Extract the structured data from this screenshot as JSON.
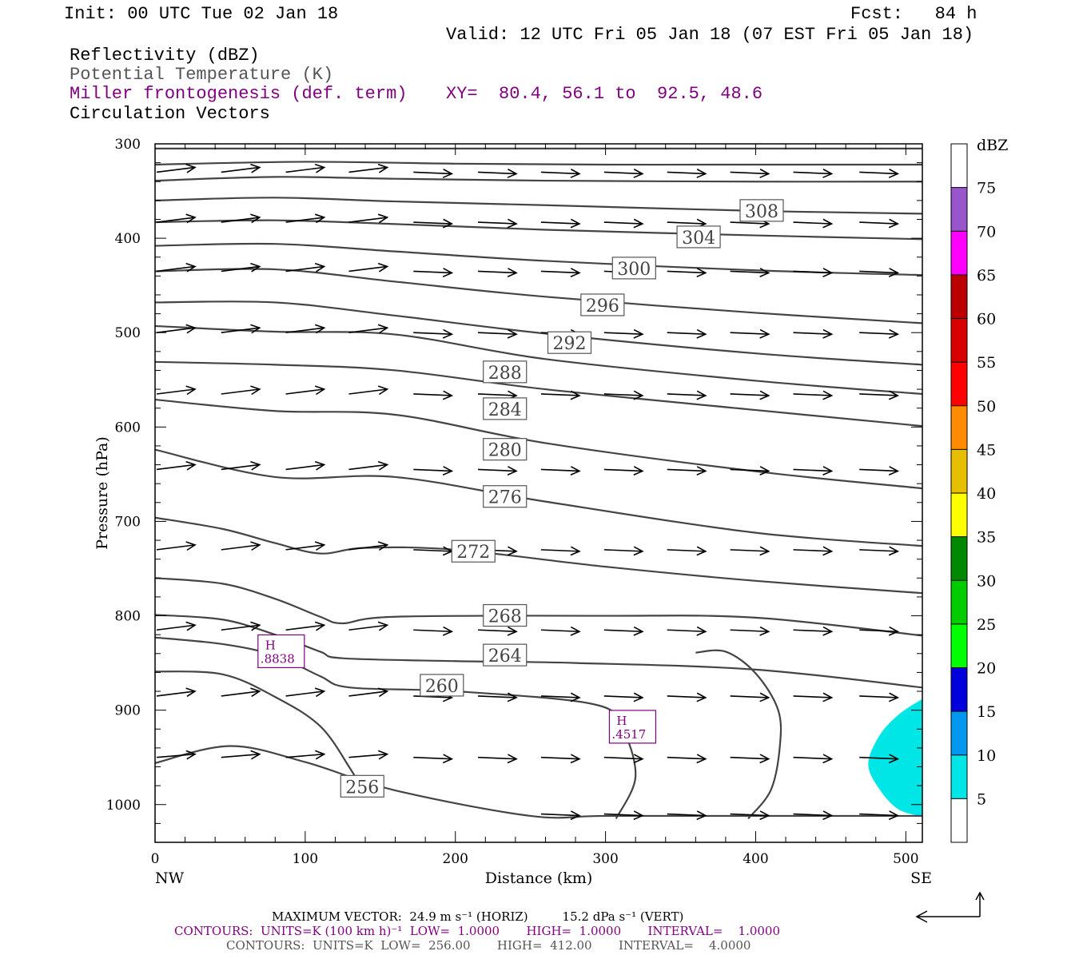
{
  "header": {
    "init": "Init: 00 UTC Tue 02 Jan 18",
    "fcst": "Fcst:   84 h",
    "valid": "Valid: 12 UTC Fri 05 Jan 18 (07 EST Fri 05 Jan 18)",
    "field1": "Reflectivity (dBZ)",
    "field2": "Potential Temperature (K)",
    "field3": "Miller frontogenesis (def. term)",
    "xy": "XY=  80.4, 56.1 to  92.5, 48.6",
    "field4": "Circulation Vectors"
  },
  "colors": {
    "contour": "#444444",
    "frontogenesis": "#800080",
    "reflectivity_5": "#00e5e5"
  },
  "chart_data": {
    "type": "cross-section",
    "xlabel": "Distance (km)",
    "ylabel": "Pressure (hPa)",
    "xlim": [
      0,
      511
    ],
    "ylim": [
      300,
      1040
    ],
    "x_ticks": [
      0,
      100,
      200,
      300,
      400,
      500
    ],
    "y_ticks": [
      300,
      400,
      500,
      600,
      700,
      800,
      900,
      1000
    ],
    "x_end_labels": {
      "left": "NW",
      "right": "SE"
    },
    "theta_contour_labels": [
      {
        "label": "308",
        "x": 404,
        "p": 371
      },
      {
        "label": "304",
        "x": 362,
        "p": 399
      },
      {
        "label": "300",
        "x": 319,
        "p": 432
      },
      {
        "label": "296",
        "x": 298,
        "p": 471
      },
      {
        "label": "292",
        "x": 276,
        "p": 511
      },
      {
        "label": "288",
        "x": 233,
        "p": 542
      },
      {
        "label": "284",
        "x": 233,
        "p": 581
      },
      {
        "label": "280",
        "x": 233,
        "p": 624
      },
      {
        "label": "276",
        "x": 233,
        "p": 674
      },
      {
        "label": "272",
        "x": 212,
        "p": 732
      },
      {
        "label": "268",
        "x": 233,
        "p": 800
      },
      {
        "label": "264",
        "x": 233,
        "p": 842
      },
      {
        "label": "260",
        "x": 191,
        "p": 874
      },
      {
        "label": "256",
        "x": 138,
        "p": 981
      }
    ],
    "theta_lines": [
      [
        [
          0,
          305
        ],
        [
          511,
          305
        ]
      ],
      [
        [
          0,
          322
        ],
        [
          100,
          319
        ],
        [
          200,
          321
        ],
        [
          300,
          322
        ],
        [
          400,
          322
        ],
        [
          511,
          322
        ]
      ],
      [
        [
          0,
          339
        ],
        [
          80,
          335
        ],
        [
          160,
          337
        ],
        [
          260,
          339
        ],
        [
          400,
          340
        ],
        [
          511,
          340
        ]
      ],
      [
        [
          0,
          360
        ],
        [
          80,
          357
        ],
        [
          160,
          361
        ],
        [
          260,
          365
        ],
        [
          400,
          371
        ],
        [
          511,
          374
        ]
      ],
      [
        [
          0,
          383
        ],
        [
          80,
          381
        ],
        [
          160,
          385
        ],
        [
          260,
          391
        ],
        [
          400,
          397
        ],
        [
          511,
          401
        ]
      ],
      [
        [
          0,
          408
        ],
        [
          80,
          406
        ],
        [
          160,
          414
        ],
        [
          260,
          424
        ],
        [
          400,
          434
        ],
        [
          511,
          439
        ]
      ],
      [
        [
          0,
          435
        ],
        [
          80,
          433
        ],
        [
          160,
          446
        ],
        [
          260,
          462
        ],
        [
          400,
          479
        ],
        [
          511,
          490
        ]
      ],
      [
        [
          0,
          468
        ],
        [
          80,
          468
        ],
        [
          160,
          482
        ],
        [
          260,
          501
        ],
        [
          400,
          522
        ],
        [
          511,
          534
        ]
      ],
      [
        [
          0,
          493
        ],
        [
          80,
          499
        ],
        [
          160,
          502
        ],
        [
          260,
          528
        ],
        [
          400,
          551
        ],
        [
          511,
          565
        ]
      ],
      [
        [
          0,
          531
        ],
        [
          80,
          534
        ],
        [
          160,
          540
        ],
        [
          260,
          560
        ],
        [
          400,
          582
        ],
        [
          511,
          599
        ]
      ],
      [
        [
          0,
          571
        ],
        [
          80,
          583
        ],
        [
          160,
          587
        ],
        [
          260,
          617
        ],
        [
          400,
          647
        ],
        [
          511,
          665
        ]
      ],
      [
        [
          0,
          624
        ],
        [
          80,
          653
        ],
        [
          160,
          653
        ],
        [
          260,
          679
        ],
        [
          400,
          712
        ],
        [
          511,
          726
        ]
      ],
      [
        [
          0,
          696
        ],
        [
          45,
          708
        ],
        [
          80,
          723
        ],
        [
          110,
          734
        ],
        [
          140,
          728
        ],
        [
          200,
          730
        ],
        [
          300,
          748
        ],
        [
          400,
          763
        ],
        [
          511,
          776
        ]
      ],
      [
        [
          0,
          760
        ],
        [
          45,
          766
        ],
        [
          80,
          782
        ],
        [
          110,
          801
        ],
        [
          125,
          808
        ],
        [
          160,
          801
        ],
        [
          300,
          800
        ],
        [
          400,
          802
        ],
        [
          511,
          821
        ]
      ],
      [
        [
          0,
          799
        ],
        [
          45,
          804
        ],
        [
          80,
          820
        ],
        [
          110,
          838
        ],
        [
          125,
          845
        ],
        [
          200,
          848
        ],
        [
          280,
          850
        ],
        [
          400,
          857
        ],
        [
          511,
          876
        ]
      ],
      [
        [
          0,
          823
        ],
        [
          45,
          830
        ],
        [
          80,
          842
        ],
        [
          110,
          864
        ],
        [
          130,
          876
        ],
        [
          200,
          880
        ],
        [
          290,
          893
        ],
        [
          310,
          916
        ],
        [
          320,
          970
        ],
        [
          307,
          1015
        ]
      ],
      [
        [
          0,
          859
        ],
        [
          45,
          862
        ],
        [
          80,
          886
        ],
        [
          110,
          917
        ],
        [
          130,
          962
        ],
        [
          140,
          990
        ]
      ],
      [
        [
          0,
          956
        ],
        [
          50,
          938
        ],
        [
          100,
          955
        ],
        [
          160,
          985
        ],
        [
          250,
          1012
        ],
        [
          300,
          1012
        ],
        [
          400,
          1012
        ],
        [
          511,
          1012
        ]
      ],
      [
        [
          360,
          839
        ],
        [
          380,
          838
        ],
        [
          400,
          861
        ],
        [
          415,
          900
        ],
        [
          416,
          940
        ],
        [
          410,
          985
        ],
        [
          395,
          1015
        ]
      ]
    ],
    "frontogenesis_labels": [
      {
        "label": "H",
        "value": ".8838",
        "x": 84,
        "p": 838
      },
      {
        "label": "H",
        "value": ".4517",
        "x": 318,
        "p": 918
      }
    ],
    "reflectivity_colorbar": {
      "unit": "dBZ",
      "levels": [
        5,
        10,
        15,
        20,
        25,
        30,
        35,
        40,
        45,
        50,
        55,
        60,
        65,
        70,
        75
      ],
      "colors": [
        "#ffffff",
        "#00e5e5",
        "#0099ee",
        "#0000dd",
        "#00ff00",
        "#00cc00",
        "#008800",
        "#ffff00",
        "#e5bf00",
        "#ff8c00",
        "#ff0000",
        "#d90000",
        "#bb0000",
        "#ff00ff",
        "#9955cc",
        "#ffffff"
      ]
    },
    "reflectivity_area": [
      [
        511,
        888
      ],
      [
        495,
        905
      ],
      [
        482,
        928
      ],
      [
        475,
        958
      ],
      [
        483,
        985
      ],
      [
        495,
        1005
      ],
      [
        511,
        1013
      ]
    ],
    "vector_rows": [
      {
        "p": 330,
        "xs": [
          0,
          43,
          86,
          128,
          171,
          214,
          256,
          298,
          340,
          382,
          424,
          468
        ]
      },
      {
        "p": 383,
        "xs": [
          0,
          43,
          86,
          128,
          171,
          214,
          256,
          298,
          340,
          382,
          424,
          468
        ]
      },
      {
        "p": 435,
        "xs": [
          0,
          43,
          86,
          128,
          171,
          214,
          256,
          298,
          340,
          382,
          424,
          468
        ]
      },
      {
        "p": 500,
        "xs": [
          0,
          43,
          86,
          128,
          171,
          214,
          256,
          298,
          340,
          382,
          424,
          468
        ]
      },
      {
        "p": 565,
        "xs": [
          0,
          43,
          86,
          128,
          171,
          214,
          256,
          298,
          340,
          382,
          424,
          468
        ]
      },
      {
        "p": 645,
        "xs": [
          0,
          43,
          86,
          128,
          171,
          214,
          256,
          298,
          340,
          382,
          424,
          468
        ]
      },
      {
        "p": 730,
        "xs": [
          0,
          43,
          86,
          128,
          171,
          214,
          256,
          298,
          340,
          382,
          424,
          468
        ]
      },
      {
        "p": 815,
        "xs": [
          0,
          43,
          86,
          128,
          171,
          214,
          256,
          298,
          340,
          382,
          424,
          468
        ]
      },
      {
        "p": 885,
        "xs": [
          0,
          43,
          86,
          128,
          171,
          214,
          256,
          298,
          340,
          382,
          424,
          468
        ]
      },
      {
        "p": 950,
        "xs": [
          0,
          43,
          86,
          128,
          171,
          214,
          256,
          298,
          340,
          382,
          424,
          468
        ]
      },
      {
        "p": 1010,
        "xs": [
          256,
          298,
          340,
          382,
          424,
          468
        ]
      }
    ]
  },
  "footer": {
    "max_vector": "MAXIMUM VECTOR:  24.9 m s⁻¹ (HORIZ)         15.2 dPa s⁻¹ (VERT)",
    "contours1": "CONTOURS:  UNITS=K (100 km h)⁻¹  LOW=  1.0000       HIGH=  1.0000       INTERVAL=    1.0000",
    "contours2": "CONTOURS:  UNITS=K  LOW=  256.00       HIGH=  412.00       INTERVAL=    4.0000"
  }
}
